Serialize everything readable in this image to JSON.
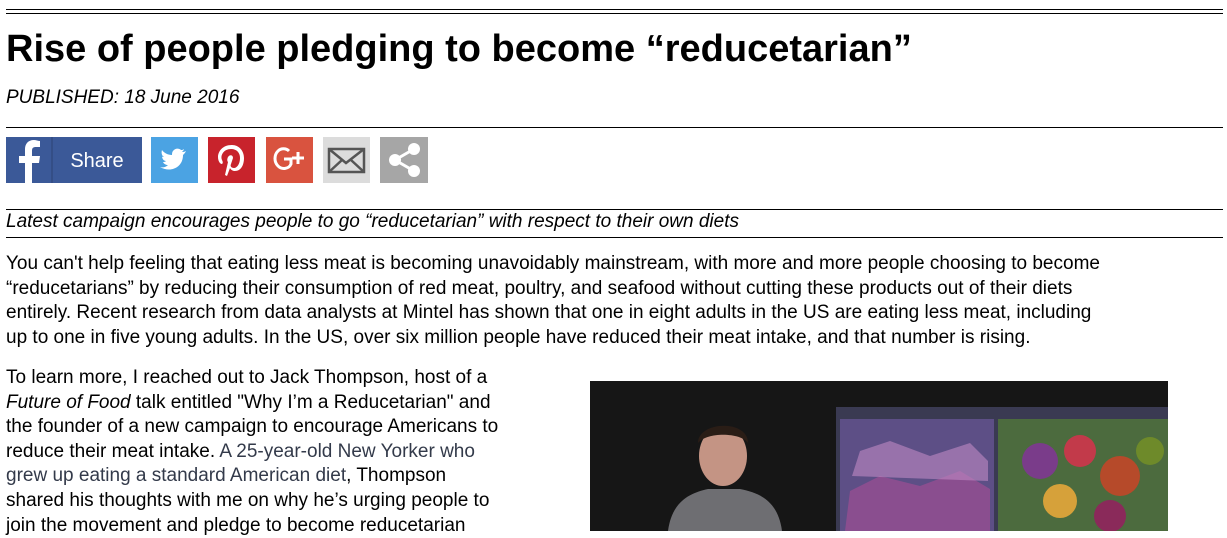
{
  "article": {
    "title": "Rise of people pledging to become “reducetarian”",
    "published": "PUBLISHED: 18 June 2016",
    "share_label": "Share",
    "standfirst": "Latest campaign encourages people to go “reducetarian” with respect to their own diets",
    "paragraphs": [
      {
        "lines": [
          [
            "You can't help feeling that eating less meat is becoming unavoidably mainstream, with more and more people choosing to become"
          ],
          [
            "“reducetarians” by reducing their consumption of red meat, poultry, and seafood without cutting these products out of their diets"
          ],
          [
            "entirely.  Recent research from data analysts at Mintel has shown that one in eight adults in the US are eating less meat, including"
          ],
          [
            "up to one in five young adults. In the US, over six million people have reduced their meat intake, and that number is rising."
          ]
        ]
      },
      {
        "lines": [
          [
            "To learn more, I reached out to Jack Thompson, host of a"
          ],
          [
            {
              "text": "Future of Food",
              "style": "italic"
            },
            " talk entitled \"Why I’m a Reducetarian\" and"
          ],
          [
            "the founder of a new campaign to encourage Americans to"
          ],
          [
            "reduce their meat intake. ",
            {
              "text": "A 25-year-old New Yorker who",
              "style": "link"
            }
          ],
          [
            {
              "text": "grew up eating a standard American diet",
              "style": "link"
            },
            ", Thompson"
          ],
          [
            "shared his thoughts with me on why he’s urging people to"
          ],
          [
            "join the movement and pledge to become reducetarian"
          ]
        ]
      }
    ]
  }
}
